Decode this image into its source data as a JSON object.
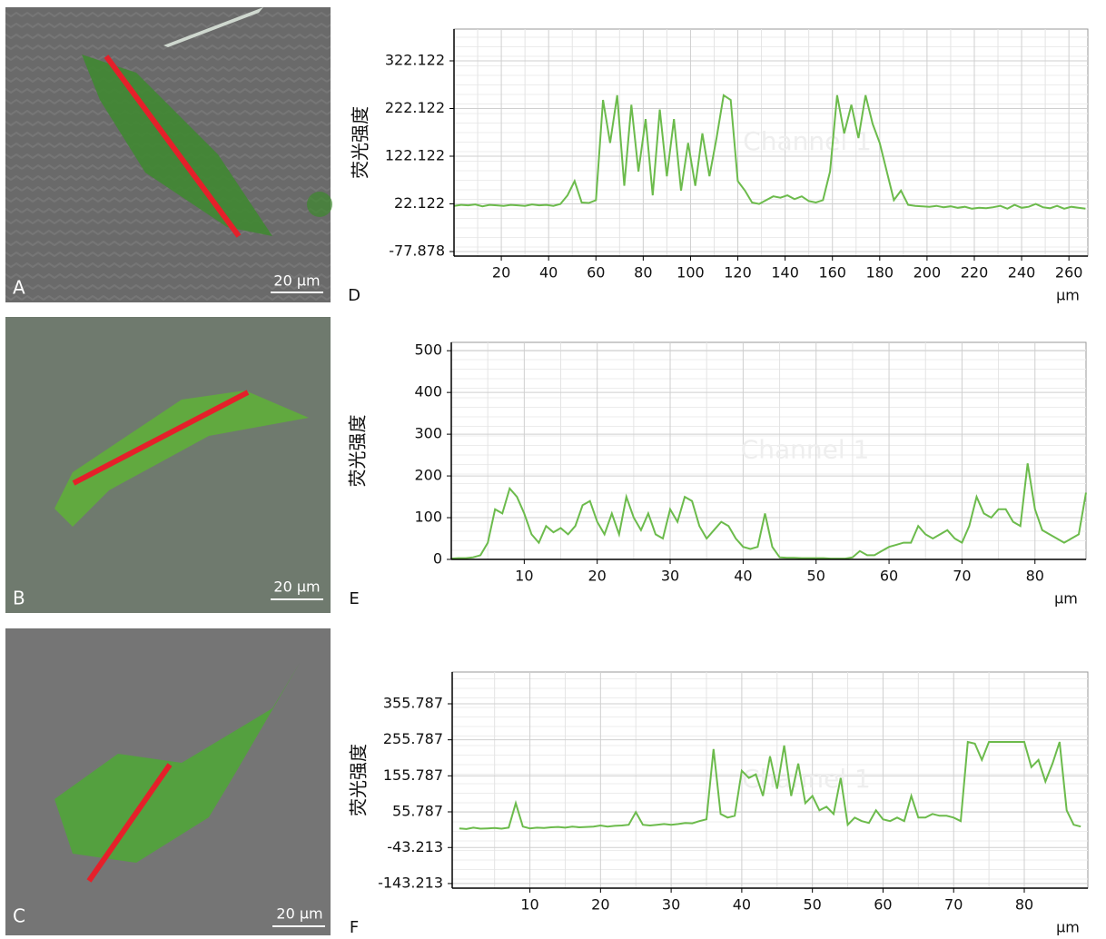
{
  "images": [
    {
      "label": "A",
      "scale_bar": "20 μm"
    },
    {
      "label": "B",
      "scale_bar": "20 μm"
    },
    {
      "label": "C",
      "scale_bar": "20 μm"
    }
  ],
  "chart_data": [
    {
      "type": "line",
      "label": "D",
      "ylabel": "荧光强度",
      "xlabel": "μm",
      "annotation": "Channel 1",
      "grid": true,
      "xlim": [
        0,
        268
      ],
      "xticks": [
        20,
        40,
        60,
        80,
        100,
        120,
        140,
        160,
        180,
        200,
        220,
        240,
        260
      ],
      "ylim": [
        -87.4,
        388.8
      ],
      "yticks": [
        -77.878,
        22.122,
        122.122,
        222.122,
        322.122
      ],
      "x": [
        0,
        3,
        6,
        9,
        12,
        15,
        18,
        21,
        24,
        27,
        30,
        33,
        36,
        39,
        42,
        45,
        48,
        51,
        54,
        57,
        60,
        63,
        66,
        69,
        72,
        75,
        78,
        81,
        84,
        87,
        90,
        93,
        96,
        99,
        102,
        105,
        108,
        111,
        114,
        117,
        120,
        123,
        126,
        129,
        132,
        135,
        138,
        141,
        144,
        147,
        150,
        153,
        156,
        159,
        162,
        165,
        168,
        171,
        174,
        177,
        180,
        183,
        186,
        189,
        192,
        195,
        198,
        201,
        204,
        207,
        210,
        213,
        216,
        219,
        222,
        225,
        228,
        231,
        234,
        237,
        240,
        243,
        246,
        249,
        252,
        255,
        258,
        261,
        264,
        267
      ],
      "series": [
        {
          "color": "#6cbb4c",
          "values": [
            18,
            20,
            19,
            21,
            17,
            20,
            19,
            18,
            20,
            19,
            18,
            21,
            19,
            20,
            18,
            22,
            40,
            70,
            25,
            24,
            30,
            240,
            150,
            250,
            60,
            230,
            90,
            200,
            40,
            220,
            80,
            200,
            50,
            150,
            60,
            170,
            80,
            160,
            250,
            240,
            70,
            50,
            25,
            22,
            30,
            38,
            35,
            40,
            32,
            38,
            28,
            25,
            30,
            90,
            250,
            170,
            230,
            160,
            250,
            190,
            150,
            90,
            30,
            50,
            20,
            18,
            17,
            16,
            18,
            15,
            17,
            14,
            16,
            12,
            14,
            13,
            15,
            18,
            12,
            20,
            14,
            16,
            22,
            15,
            13,
            18,
            12,
            16,
            14,
            12
          ]
        }
      ]
    },
    {
      "type": "line",
      "label": "E",
      "ylabel": "荧光强度",
      "xlabel": "μm",
      "annotation": "Channel 1",
      "grid": true,
      "xlim": [
        0,
        87
      ],
      "xticks": [
        10,
        20,
        30,
        40,
        50,
        60,
        70,
        80
      ],
      "ylim": [
        0,
        520
      ],
      "yticks": [
        0,
        100,
        200,
        300,
        400,
        500
      ],
      "x": [
        0,
        1,
        2,
        3,
        4,
        5,
        6,
        7,
        8,
        9,
        10,
        11,
        12,
        13,
        14,
        15,
        16,
        17,
        18,
        19,
        20,
        21,
        22,
        23,
        24,
        25,
        26,
        27,
        28,
        29,
        30,
        31,
        32,
        33,
        34,
        35,
        36,
        37,
        38,
        39,
        40,
        41,
        42,
        43,
        44,
        45,
        46,
        47,
        48,
        49,
        50,
        51,
        52,
        53,
        54,
        55,
        56,
        57,
        58,
        59,
        60,
        61,
        62,
        63,
        64,
        65,
        66,
        67,
        68,
        69,
        70,
        71,
        72,
        73,
        74,
        75,
        76,
        77,
        78,
        79,
        80,
        81,
        82,
        83,
        84,
        85,
        86,
        87
      ],
      "series": [
        {
          "color": "#6cbb4c",
          "values": [
            2,
            3,
            3,
            5,
            10,
            40,
            120,
            110,
            170,
            150,
            110,
            60,
            40,
            80,
            65,
            75,
            60,
            80,
            130,
            140,
            90,
            60,
            110,
            60,
            150,
            100,
            70,
            110,
            60,
            50,
            120,
            90,
            150,
            140,
            80,
            50,
            70,
            90,
            80,
            50,
            30,
            25,
            30,
            110,
            30,
            5,
            4,
            4,
            3,
            3,
            3,
            3,
            2,
            2,
            2,
            5,
            20,
            10,
            10,
            20,
            30,
            35,
            40,
            40,
            80,
            60,
            50,
            60,
            70,
            50,
            40,
            80,
            150,
            110,
            100,
            120,
            120,
            90,
            80,
            230,
            120,
            70,
            60,
            50,
            40,
            50,
            60,
            160
          ]
        }
      ]
    },
    {
      "type": "line",
      "label": "F",
      "ylabel": "荧光强度",
      "xlabel": "μm",
      "annotation": "Channel 1",
      "grid": true,
      "xlim": [
        -1,
        89
      ],
      "xticks": [
        10,
        20,
        30,
        40,
        50,
        60,
        70,
        80
      ],
      "ylim": [
        -156,
        444
      ],
      "yticks": [
        -143.213,
        -43.213,
        55.787,
        155.787,
        255.787,
        355.787
      ],
      "x": [
        0,
        1,
        2,
        3,
        4,
        5,
        6,
        7,
        8,
        9,
        10,
        11,
        12,
        13,
        14,
        15,
        16,
        17,
        18,
        19,
        20,
        21,
        22,
        23,
        24,
        25,
        26,
        27,
        28,
        29,
        30,
        31,
        32,
        33,
        34,
        35,
        36,
        37,
        38,
        39,
        40,
        41,
        42,
        43,
        44,
        45,
        46,
        47,
        48,
        49,
        50,
        51,
        52,
        53,
        54,
        55,
        56,
        57,
        58,
        59,
        60,
        61,
        62,
        63,
        64,
        65,
        66,
        67,
        68,
        69,
        70,
        71,
        72,
        73,
        74,
        75,
        76,
        77,
        78,
        79,
        80,
        81,
        82,
        83,
        84,
        85,
        86,
        87,
        88
      ],
      "series": [
        {
          "color": "#6cbb4c",
          "values": [
            10,
            8,
            12,
            9,
            10,
            11,
            9,
            12,
            80,
            15,
            10,
            12,
            11,
            13,
            14,
            12,
            15,
            13,
            14,
            15,
            18,
            15,
            17,
            18,
            20,
            55,
            20,
            18,
            20,
            22,
            20,
            22,
            25,
            24,
            30,
            35,
            230,
            50,
            40,
            45,
            170,
            150,
            160,
            100,
            210,
            120,
            240,
            100,
            190,
            80,
            100,
            60,
            70,
            50,
            150,
            20,
            40,
            30,
            25,
            60,
            35,
            30,
            40,
            30,
            100,
            40,
            40,
            50,
            45,
            45,
            40,
            30,
            250,
            245,
            200,
            250,
            250,
            250,
            250,
            250,
            250,
            180,
            200,
            140,
            190,
            250,
            60,
            20,
            15
          ]
        }
      ]
    }
  ]
}
